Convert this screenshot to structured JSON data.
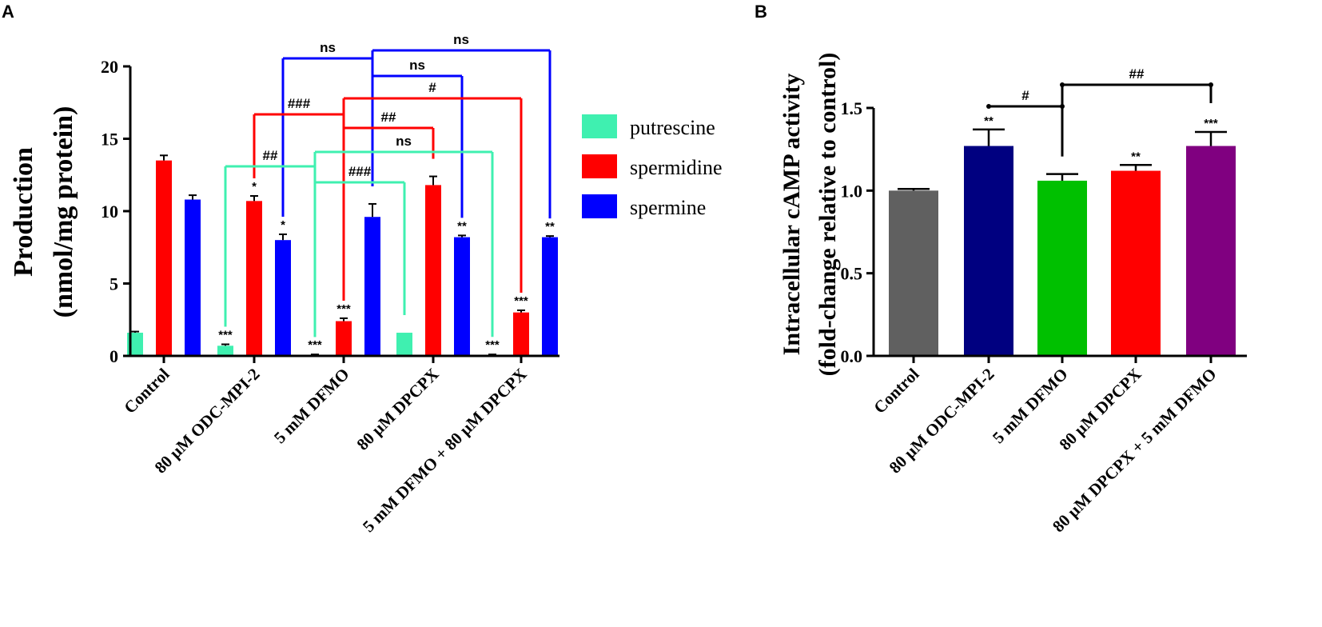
{
  "chart_data": [
    {
      "panel": "A",
      "type": "bar",
      "ylabel": [
        "Production",
        "(nmol/mg protein)"
      ],
      "ylim": [
        0,
        20
      ],
      "yticks": [
        0,
        5,
        10,
        15,
        20
      ],
      "categories": [
        "Control",
        "80 µM ODC-MPI-2",
        "5 mM DFMO",
        "80 µM DPCPX",
        "5 mM DFMO + 80 µM DPCPX"
      ],
      "series": [
        {
          "name": "putrescine",
          "color": "#3ff0b0",
          "values": [
            1.6,
            0.7,
            0.05,
            1.6,
            0.05
          ],
          "errors": [
            0.08,
            0.1,
            0.05,
            0,
            0.05
          ],
          "stars": [
            "",
            "***",
            "***",
            "",
            "***"
          ]
        },
        {
          "name": "spermidine",
          "color": "#ff0000",
          "values": [
            13.5,
            10.7,
            2.4,
            11.8,
            3.0
          ],
          "errors": [
            0.35,
            0.35,
            0.2,
            0.6,
            0.15
          ],
          "stars": [
            "",
            "*",
            "***",
            "",
            "***"
          ]
        },
        {
          "name": "spermine",
          "color": "#0000ff",
          "values": [
            10.8,
            8.0,
            9.6,
            8.2,
            8.2
          ],
          "errors": [
            0.3,
            0.4,
            0.9,
            0.12,
            0.08
          ],
          "stars": [
            "",
            "*",
            "",
            "**",
            "**"
          ]
        }
      ],
      "comparisons": [
        {
          "series": "spermine",
          "from": 1,
          "to": 2,
          "label": "ns"
        },
        {
          "series": "spermine",
          "from": 2,
          "to": 4,
          "label": "ns"
        },
        {
          "series": "spermine",
          "from": 2,
          "to": 3,
          "label": "ns"
        },
        {
          "series": "spermidine",
          "from": 1,
          "to": 2,
          "label": "###"
        },
        {
          "series": "spermidine",
          "from": 2,
          "to": 4,
          "label": "#"
        },
        {
          "series": "spermidine",
          "from": 2,
          "to": 3,
          "label": "##"
        },
        {
          "series": "putrescine",
          "from": 1,
          "to": 2,
          "label": "##"
        },
        {
          "series": "putrescine",
          "from": 2,
          "to": 4,
          "label": "ns"
        },
        {
          "series": "putrescine",
          "from": 2,
          "to": 3,
          "label": "###"
        }
      ]
    },
    {
      "panel": "B",
      "type": "bar",
      "ylabel": [
        "Intracellular cAMP activity",
        "(fold-change relative to control)"
      ],
      "ylim": [
        0,
        1.5
      ],
      "yticks": [
        "0.0",
        "0.5",
        "1.0",
        "1.5"
      ],
      "categories": [
        "Control",
        "80 µM ODC-MPI-2",
        "5 mM DFMO",
        "80 µM DPCPX",
        "80 µM DPCPX + 5 mM DFMO"
      ],
      "values": [
        1.0,
        1.27,
        1.06,
        1.12,
        1.27
      ],
      "errors": [
        0.01,
        0.1,
        0.04,
        0.035,
        0.085
      ],
      "colors": [
        "#606060",
        "#000080",
        "#00c000",
        "#ff0000",
        "#800080"
      ],
      "stars": [
        "",
        "**",
        "",
        "**",
        "***"
      ],
      "comparisons": [
        {
          "from": 1,
          "to": 2,
          "label": "#"
        },
        {
          "from": 2,
          "to": 4,
          "label": "##"
        }
      ]
    }
  ]
}
